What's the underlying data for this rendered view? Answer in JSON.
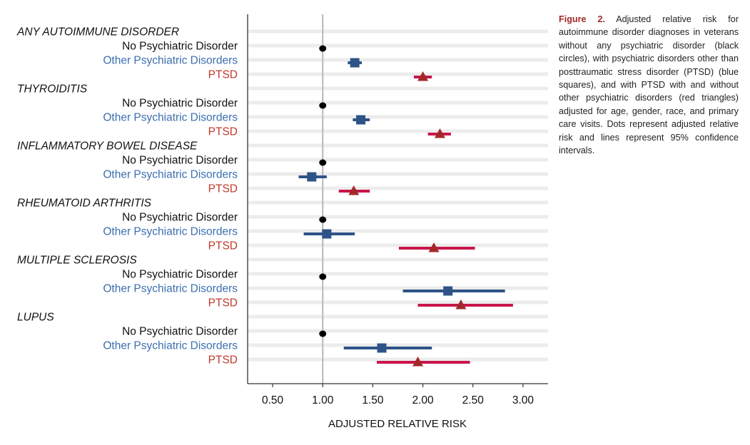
{
  "chart_data": {
    "type": "forest",
    "xlabel": "ADJUSTED RELATIVE RISK",
    "xlim": [
      0.25,
      3.25
    ],
    "xticks": [
      0.5,
      1.0,
      1.5,
      2.0,
      2.5,
      3.0
    ],
    "xtick_labels": [
      "0.50",
      "1.00",
      "1.50",
      "2.00",
      "2.50",
      "3.00"
    ],
    "reference_line": 1.0,
    "series": [
      {
        "name": "No Psychiatric Disorder",
        "color": "#000000",
        "marker": "circle"
      },
      {
        "name": "Other Psychiatric Disorders",
        "color": "#2e5387",
        "marker": "square"
      },
      {
        "name": "PTSD",
        "color": "#a3282a",
        "marker": "triangle",
        "ci_color": "#c8164a"
      }
    ],
    "groups": [
      {
        "name": "ANY AUTOIMMUNE DISORDER",
        "rows": [
          {
            "label": "No Psychiatric Disorder",
            "estimate": 1.0,
            "ci": null
          },
          {
            "label": "Other Psychiatric Disorders",
            "estimate": 1.32,
            "ci": [
              1.25,
              1.39
            ]
          },
          {
            "label": "PTSD",
            "estimate": 2.0,
            "ci": [
              1.91,
              2.09
            ]
          }
        ]
      },
      {
        "name": "THYROIDITIS",
        "rows": [
          {
            "label": "No Psychiatric Disorder",
            "estimate": 1.0,
            "ci": null
          },
          {
            "label": "Other Psychiatric Disorders",
            "estimate": 1.38,
            "ci": [
              1.3,
              1.47
            ]
          },
          {
            "label": "PTSD",
            "estimate": 2.17,
            "ci": [
              2.05,
              2.28
            ]
          }
        ]
      },
      {
        "name": "INFLAMMATORY BOWEL DISEASE",
        "rows": [
          {
            "label": "No Psychiatric Disorder",
            "estimate": 1.0,
            "ci": null
          },
          {
            "label": "Other Psychiatric Disorders",
            "estimate": 0.89,
            "ci": [
              0.76,
              1.04
            ]
          },
          {
            "label": "PTSD",
            "estimate": 1.31,
            "ci": [
              1.16,
              1.47
            ]
          }
        ]
      },
      {
        "name": "RHEUMATOID ARTHRITIS",
        "rows": [
          {
            "label": "No Psychiatric Disorder",
            "estimate": 1.0,
            "ci": null
          },
          {
            "label": "Other Psychiatric Disorders",
            "estimate": 1.04,
            "ci": [
              0.81,
              1.32
            ]
          },
          {
            "label": "PTSD",
            "estimate": 2.11,
            "ci": [
              1.76,
              2.52
            ]
          }
        ]
      },
      {
        "name": "MULTIPLE SCLEROSIS",
        "rows": [
          {
            "label": "No Psychiatric Disorder",
            "estimate": 1.0,
            "ci": null
          },
          {
            "label": "Other Psychiatric Disorders",
            "estimate": 2.25,
            "ci": [
              1.8,
              2.82
            ]
          },
          {
            "label": "PTSD",
            "estimate": 2.38,
            "ci": [
              1.95,
              2.9
            ]
          }
        ]
      },
      {
        "name": "LUPUS",
        "rows": [
          {
            "label": "No Psychiatric Disorder",
            "estimate": 1.0,
            "ci": null
          },
          {
            "label": "Other Psychiatric Disorders",
            "estimate": 1.59,
            "ci": [
              1.21,
              2.09
            ]
          },
          {
            "label": "PTSD",
            "estimate": 1.95,
            "ci": [
              1.54,
              2.47
            ]
          }
        ]
      }
    ]
  },
  "caption": {
    "label": "Figure 2.",
    "text": "Adjusted relative risk for autoimmune disorder diagnoses in veterans without any psychiatric disorder (black circles), with psychiatric disorders other than posttraumatic stress disorder (PTSD) (blue squares), and with PTSD with and without other psychiatric disorders (red triangles) adjusted for age, gender, race, and primary care visits. Dots represent adjusted relative risk and lines represent 95% confidence intervals."
  }
}
